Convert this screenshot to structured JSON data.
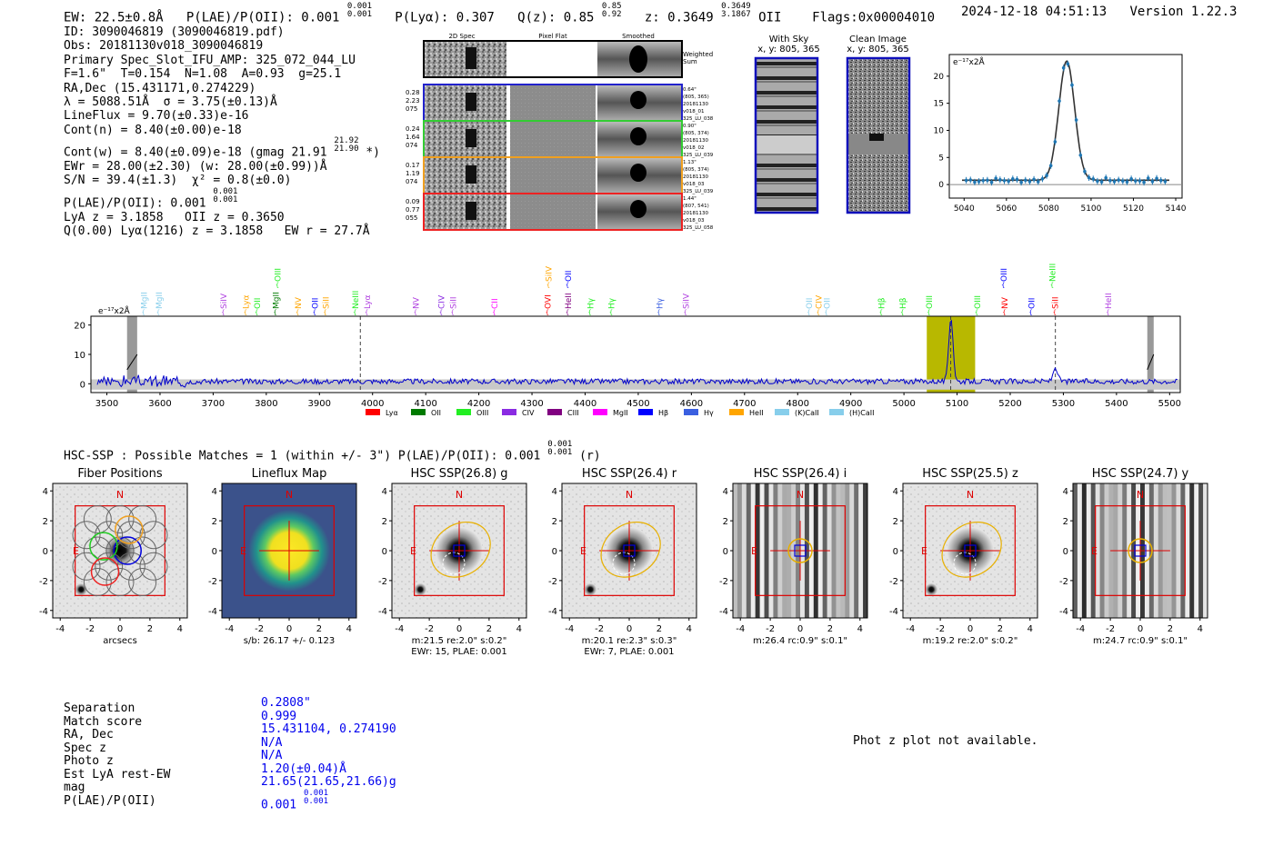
{
  "header": {
    "ew": "EW: 22.5±0.8Å",
    "plae_label": "P(LAE)/P(OII): 0.001",
    "plae_hi": "0.001",
    "plae_lo": "0.001",
    "plya": "P(Lyα): 0.307",
    "qz_label": "Q(z): 0.85",
    "qz_hi": "0.85",
    "qz_lo": "0.92",
    "z_label": "z: 0.3649",
    "z_hi": "0.3649",
    "z_lo": "3.1867",
    "z_line": "OII",
    "flags": "Flags:0x00004010",
    "timestamp": "2024-12-18 04:51:13",
    "version": "Version 1.22.3"
  },
  "info": {
    "id": "ID: 3090046819 (3090046819.pdf)",
    "obs": "Obs: 20181130v018_3090046819",
    "primary": "Primary Spec_Slot_IFU_AMP: 325_072_044_LU",
    "fparams": "F=1.6\"  T=0.154  N=1.08  A=0.93  g=25.1",
    "radec": "RA,Dec (15.431171,0.274229)",
    "lambda": "λ = 5088.51Å  σ = 3.75(±0.13)Å",
    "lineflux": "LineFlux = 9.70(±0.33)e-16",
    "contn": "Cont(n) = 8.40(±0.00)e-18",
    "contw": "Cont(w) = 8.40(±0.09)e-18 (gmag 21.91",
    "contw_hi": "21.92",
    "contw_lo": "21.90",
    "contw_end": "*)",
    "ewr": "EWr = 28.00(±2.30) (w: 28.00(±0.99))Å",
    "sn": "S/N = 39.4(±1.3)  χ² = 0.8(±0.0)",
    "plae": "P(LAE)/P(OII): 0.001",
    "plae_hi": "0.001",
    "plae_lo": "0.001",
    "lya_z": "LyA z = 3.1858   OII z = 0.3650",
    "q": "Q(0.00) Lyα(1216) z = 3.1858   EW r = 27.7Å"
  },
  "cutouts": {
    "col_2d": "2D Spec",
    "col_flat": "Pixel Flat",
    "col_smooth": "Smoothed",
    "weighted": "Weighted Sum",
    "rows": [
      {
        "l1": "0.28",
        "l2": "2.23",
        "l3": "075",
        "r1": "0.64\"",
        "r2": "(805, 365)",
        "r3": "20181130",
        "r4": "v018_01",
        "r5": "325_LU_038",
        "color": "#2222cc"
      },
      {
        "l1": "0.24",
        "l2": "1.64",
        "l3": "074",
        "r1": "0.90\"",
        "r2": "(805, 374)",
        "r3": "20181130",
        "r4": "v018_02",
        "r5": "325_LU_039",
        "color": "#33cc33"
      },
      {
        "l1": "0.17",
        "l2": "1.19",
        "l3": "074",
        "r1": "1.13\"",
        "r2": "(805, 374)",
        "r3": "20181130",
        "r4": "v018_03",
        "r5": "325_LU_039",
        "color": "#f0a020"
      },
      {
        "l1": "0.09",
        "l2": "0.77",
        "l3": "055",
        "r1": "1.44\"",
        "r2": "(807, 541)",
        "r3": "20181130",
        "r4": "v018_03",
        "r5": "325_LU_058",
        "color": "#ee2222"
      }
    ]
  },
  "sky": {
    "with_sky": "With Sky",
    "with_sky_xy": "x, y: 805, 365",
    "clean": "Clean Image",
    "clean_xy": "x, y: 805, 365"
  },
  "zoom_chart": {
    "ylabel": "e⁻¹⁷x2Å",
    "xticks": [
      "5040",
      "5060",
      "5080",
      "5100",
      "5120",
      "5140"
    ],
    "yticks": [
      "0",
      "5",
      "10",
      "15",
      "20"
    ],
    "xlim": [
      5033,
      5143
    ],
    "ylim": [
      -2.5,
      24
    ],
    "fit": {
      "center": 5088.5,
      "sigma": 3.75,
      "amp": 22.0,
      "cont": 0.8
    }
  },
  "chart_data": {
    "type": "line",
    "title": "",
    "ylabel": "e⁻¹⁷x2Å",
    "xlim": [
      3470,
      5520
    ],
    "ylim": [
      -3,
      23
    ],
    "xticks": [
      "3500",
      "3600",
      "3700",
      "3800",
      "3900",
      "4000",
      "4100",
      "4200",
      "4300",
      "4400",
      "4500",
      "4600",
      "4700",
      "4800",
      "4900",
      "5000",
      "5100",
      "5200",
      "5300",
      "5400",
      "5500"
    ],
    "yticks": [
      "0",
      "10",
      "20"
    ],
    "peak": {
      "x": 5088.5,
      "y": 22
    },
    "secondary_peak": {
      "x": 5285,
      "y": 5
    },
    "highlight_band": [
      5043,
      5134
    ],
    "dashed_lines": [
      3977,
      5088,
      5285
    ],
    "masked_bands": [
      [
        3538,
        3557
      ],
      [
        5458,
        5470
      ]
    ],
    "legend": [
      "Lyα",
      "OII",
      "OIII",
      "CIV",
      "CIII",
      "MgII",
      "Hβ",
      "Hγ",
      "HeII",
      "(K)CaII",
      "(H)CaII"
    ],
    "legend_colors": [
      "#ff0000",
      "#007a00",
      "#22ee22",
      "#8a2be2",
      "#800080",
      "#ff00ff",
      "#0000ff",
      "#3a5fe0",
      "#ffa500",
      "#87ceeb",
      "#87ceeb"
    ],
    "line_labels": [
      {
        "t": "MgII",
        "x": 3570,
        "c": "#87ceeb",
        "h": 1
      },
      {
        "t": "MgII",
        "x": 3598,
        "c": "#87ceeb",
        "h": 1
      },
      {
        "t": "SiIV",
        "x": 3720,
        "c": "#b040e0",
        "h": 1
      },
      {
        "t": "Lyα",
        "x": 3762,
        "c": "#ffa500",
        "h": 1
      },
      {
        "t": "OII",
        "x": 3783,
        "c": "#22ee22",
        "h": 1
      },
      {
        "t": "MgII",
        "x": 3818,
        "c": "#007a00",
        "h": 1
      },
      {
        "t": "OIII",
        "x": 3822,
        "c": "#22ee22",
        "h": 2
      },
      {
        "t": "NV",
        "x": 3860,
        "c": "#ffa500",
        "h": 1
      },
      {
        "t": "OII",
        "x": 3892,
        "c": "#0000ff",
        "h": 1
      },
      {
        "t": "SiII",
        "x": 3912,
        "c": "#ffa500",
        "h": 1
      },
      {
        "t": "NeIII",
        "x": 3968,
        "c": "#22ee22",
        "h": 1
      },
      {
        "t": "Lyα",
        "x": 3990,
        "c": "#b040e0",
        "h": 1
      },
      {
        "t": "NV",
        "x": 4082,
        "c": "#b040e0",
        "h": 1
      },
      {
        "t": "CIV",
        "x": 4130,
        "c": "#8a2be2",
        "h": 1
      },
      {
        "t": "SiII",
        "x": 4152,
        "c": "#b040e0",
        "h": 1
      },
      {
        "t": "CII",
        "x": 4230,
        "c": "#ff00ff",
        "h": 1
      },
      {
        "t": "OVI",
        "x": 4330,
        "c": "#ff0000",
        "h": 1
      },
      {
        "t": "SiIV",
        "x": 4332,
        "c": "#ffa500",
        "h": 2
      },
      {
        "t": "OII",
        "x": 4368,
        "c": "#0000ff",
        "h": 2
      },
      {
        "t": "HeII",
        "x": 4368,
        "c": "#800080",
        "h": 1
      },
      {
        "t": "Hγ",
        "x": 4410,
        "c": "#22ee22",
        "h": 1
      },
      {
        "t": "Hγ",
        "x": 4450,
        "c": "#22ee22",
        "h": 1
      },
      {
        "t": "Hγ",
        "x": 4540,
        "c": "#3a5fe0",
        "h": 1
      },
      {
        "t": "SiIV",
        "x": 4590,
        "c": "#b040e0",
        "h": 1
      },
      {
        "t": "OII",
        "x": 4822,
        "c": "#87ceeb",
        "h": 1
      },
      {
        "t": "CIV",
        "x": 4840,
        "c": "#ffa500",
        "h": 1
      },
      {
        "t": "OII",
        "x": 4855,
        "c": "#87ceeb",
        "h": 1
      },
      {
        "t": "Hβ",
        "x": 4958,
        "c": "#22ee22",
        "h": 1
      },
      {
        "t": "Hβ",
        "x": 4998,
        "c": "#22ee22",
        "h": 1
      },
      {
        "t": "OIII",
        "x": 5048,
        "c": "#22ee22",
        "h": 1
      },
      {
        "t": "OIII",
        "x": 5138,
        "c": "#22ee22",
        "h": 1
      },
      {
        "t": "NV",
        "x": 5190,
        "c": "#ff0000",
        "h": 1
      },
      {
        "t": "OIII",
        "x": 5188,
        "c": "#0000ff",
        "h": 2
      },
      {
        "t": "OII",
        "x": 5240,
        "c": "#0000ff",
        "h": 1
      },
      {
        "t": "SiII",
        "x": 5285,
        "c": "#ff0000",
        "h": 1
      },
      {
        "t": "NeIII",
        "x": 5280,
        "c": "#22ee22",
        "h": 2
      },
      {
        "t": "HeII",
        "x": 5385,
        "c": "#b040e0",
        "h": 1
      }
    ]
  },
  "hsc": {
    "matches": "HSC-SSP : Possible Matches = 1 (within +/- 3\")  P(LAE)/P(OII): 0.001",
    "hi": "0.001",
    "lo": "0.001",
    "band": "(r)",
    "panels": [
      {
        "title": "Fiber Positions",
        "cap1": "arcsecs",
        "cap2": "",
        "kind": "fiber"
      },
      {
        "title": "Lineflux Map",
        "cap1": "s/b: 26.17 +/- 0.123",
        "cap2": "",
        "kind": "flux"
      },
      {
        "title": "HSC SSP(26.8) g",
        "cap1": "m:21.5  re:2.0\"  s:0.2\"",
        "cap2": "EWr: 15, PLAE: 0.001",
        "kind": "gal"
      },
      {
        "title": "HSC SSP(26.4) r",
        "cap1": "m:20.1  re:2.3\"  s:0.3\"",
        "cap2": "EWr: 7, PLAE: 0.001",
        "kind": "gal"
      },
      {
        "title": "HSC SSP(26.4) i",
        "cap1": "m:26.4 rc:0.9\"  s:0.1\"",
        "cap2": "",
        "kind": "stripe"
      },
      {
        "title": "HSC SSP(25.5) z",
        "cap1": "m:19.2  re:2.0\"  s:0.2\"",
        "cap2": "",
        "kind": "gal"
      },
      {
        "title": "HSC SSP(24.7) y",
        "cap1": "m:24.7 rc:0.9\"  s:0.1\"",
        "cap2": "",
        "kind": "stripe"
      }
    ],
    "ticks": [
      "-4",
      "-2",
      "0",
      "2",
      "4"
    ],
    "north": "N",
    "east": "E"
  },
  "summary": {
    "labels": [
      "Separation",
      "Match score",
      "RA, Dec",
      "Spec z",
      "Photo z",
      "Est LyA rest-EW",
      "mag",
      "P(LAE)/P(OII)"
    ],
    "values": [
      "0.2808\"",
      "0.999",
      "15.431104, 0.274190",
      "N/A",
      "N/A",
      "1.20(±0.04)Å",
      "21.65(21.65,21.66)g",
      "0.001"
    ],
    "plae_hi": "0.001",
    "plae_lo": "0.001",
    "photz_msg": "Phot z plot not available."
  }
}
